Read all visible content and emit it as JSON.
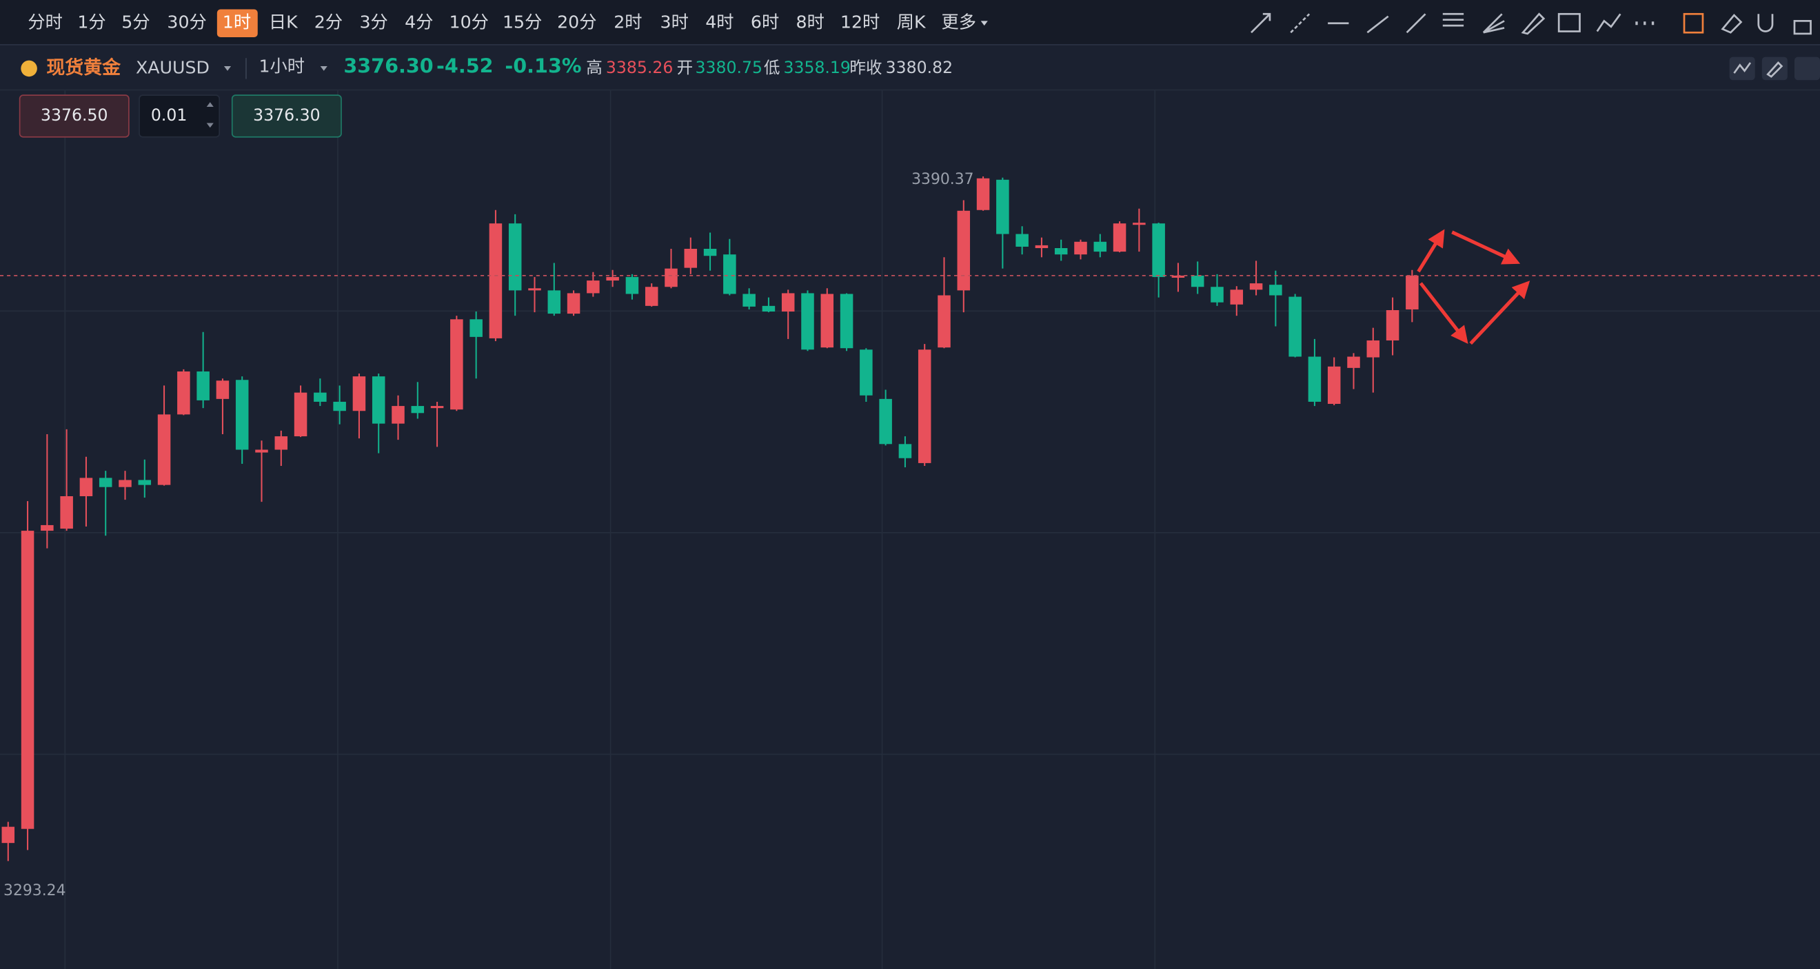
{
  "toolbar": {
    "intervals": [
      "分时",
      "1分",
      "5分",
      "30分",
      "1时",
      "日K",
      "2分",
      "3分",
      "4分",
      "10分",
      "15分",
      "20分",
      "2时",
      "3时",
      "4时",
      "6时",
      "8时",
      "12时",
      "周K",
      "更多"
    ]
  },
  "symbol": {
    "name": "现货黄金",
    "code": "XAUUSD",
    "period": "1小时"
  },
  "quote": {
    "last": "3376.30",
    "change": "-4.52",
    "change_pct": "-0.13%",
    "high_label": "高",
    "high": "3385.26",
    "open_label": "开",
    "open": "3380.75",
    "low_label": "低",
    "low": "3358.19",
    "prev_close_label": "昨收",
    "prev_close": "3380.82"
  },
  "order": {
    "sell": "3376.50",
    "qty": "0.01",
    "buy": "3376.30"
  },
  "chart_data": {
    "type": "candlestick",
    "up_color": "#e8505b",
    "down_color": "#12b48e",
    "open": [
      3295.8,
      3297.8,
      3340.1,
      3340.4,
      3345.0,
      3347.6,
      3346.3,
      3347.3,
      3346.6,
      3356.6,
      3362.7,
      3358.8,
      3361.5,
      3351.2,
      3351.6,
      3353.5,
      3359.7,
      3358.4,
      3357.1,
      3362.0,
      3355.3,
      3357.8,
      3357.5,
      3357.3,
      3370.1,
      3367.4,
      3383.7,
      3374.2,
      3374.2,
      3370.9,
      3373.8,
      3375.6,
      3376.1,
      3372.0,
      3374.7,
      3377.4,
      3380.1,
      3379.3,
      3373.7,
      3372.0,
      3371.2,
      3373.8,
      3366.1,
      3373.7,
      3365.8,
      3358.8,
      3352.4,
      3349.7,
      3366.1,
      3374.2,
      3385.6,
      3389.9,
      3382.2,
      3380.2,
      3380.2,
      3379.3,
      3381.1,
      3379.7,
      3383.5,
      3383.7,
      3376.0,
      3376.3,
      3374.7,
      3372.2,
      3374.3,
      3375.0,
      3373.3,
      3364.8,
      3358.1,
      3363.2,
      3364.7,
      3367.1,
      3371.5
    ],
    "high": [
      3298.8,
      3344.3,
      3353.8,
      3354.5,
      3350.6,
      3348.6,
      3348.6,
      3350.2,
      3360.7,
      3363.0,
      3368.3,
      3361.7,
      3362.0,
      3352.9,
      3354.3,
      3360.7,
      3361.7,
      3360.7,
      3362.4,
      3362.4,
      3359.3,
      3361.2,
      3358.4,
      3370.6,
      3371.2,
      3385.6,
      3385.0,
      3376.1,
      3378.1,
      3374.2,
      3376.8,
      3377.1,
      3376.5,
      3375.2,
      3380.1,
      3381.7,
      3382.4,
      3381.5,
      3374.5,
      3373.2,
      3374.3,
      3374.2,
      3374.5,
      3373.8,
      3366.0,
      3360.1,
      3353.5,
      3366.6,
      3378.9,
      3387.0,
      3390.37,
      3390.2,
      3383.3,
      3381.7,
      3381.4,
      3381.4,
      3382.2,
      3384.0,
      3385.8,
      3383.8,
      3378.1,
      3378.3,
      3376.5,
      3374.8,
      3378.4,
      3377.0,
      3373.7,
      3367.3,
      3364.7,
      3365.3,
      3368.9,
      3373.2,
      3377.1
    ],
    "low": [
      3293.24,
      3294.8,
      3337.6,
      3340.1,
      3340.7,
      3339.4,
      3344.5,
      3344.8,
      3346.5,
      3356.5,
      3357.5,
      3353.8,
      3349.6,
      3344.2,
      3349.3,
      3353.4,
      3357.8,
      3355.2,
      3353.2,
      3351.1,
      3353.0,
      3356.0,
      3352.0,
      3357.1,
      3361.7,
      3367.0,
      3370.6,
      3371.1,
      3370.6,
      3370.6,
      3373.3,
      3374.7,
      3372.9,
      3371.9,
      3374.5,
      3376.5,
      3377.0,
      3373.5,
      3371.5,
      3371.1,
      3367.3,
      3365.6,
      3366.0,
      3365.6,
      3358.4,
      3352.2,
      3349.1,
      3349.3,
      3366.0,
      3371.1,
      3385.5,
      3377.3,
      3379.3,
      3378.9,
      3378.4,
      3378.6,
      3378.9,
      3379.6,
      3379.7,
      3373.2,
      3374.0,
      3373.7,
      3372.0,
      3370.6,
      3373.5,
      3369.1,
      3364.7,
      3357.8,
      3357.9,
      3360.2,
      3359.7,
      3365.0,
      3369.7
    ],
    "close": [
      3298.1,
      3340.1,
      3340.9,
      3345.0,
      3347.6,
      3346.3,
      3347.3,
      3346.6,
      3356.6,
      3362.7,
      3358.6,
      3361.4,
      3351.6,
      3351.6,
      3353.5,
      3359.7,
      3358.4,
      3357.1,
      3362.0,
      3355.3,
      3357.8,
      3356.8,
      3357.8,
      3370.1,
      3367.6,
      3383.7,
      3374.2,
      3374.5,
      3370.9,
      3373.8,
      3375.6,
      3376.1,
      3373.7,
      3374.7,
      3377.3,
      3380.1,
      3379.1,
      3373.7,
      3371.9,
      3371.2,
      3373.8,
      3365.8,
      3373.7,
      3366.0,
      3359.3,
      3352.4,
      3350.4,
      3365.8,
      3373.5,
      3385.5,
      3390.1,
      3382.2,
      3380.4,
      3380.6,
      3379.3,
      3381.1,
      3379.7,
      3383.7,
      3383.8,
      3376.1,
      3376.3,
      3374.7,
      3372.5,
      3374.3,
      3375.2,
      3373.5,
      3364.8,
      3358.4,
      3363.4,
      3364.8,
      3367.1,
      3371.4,
      3376.3
    ]
  }
}
